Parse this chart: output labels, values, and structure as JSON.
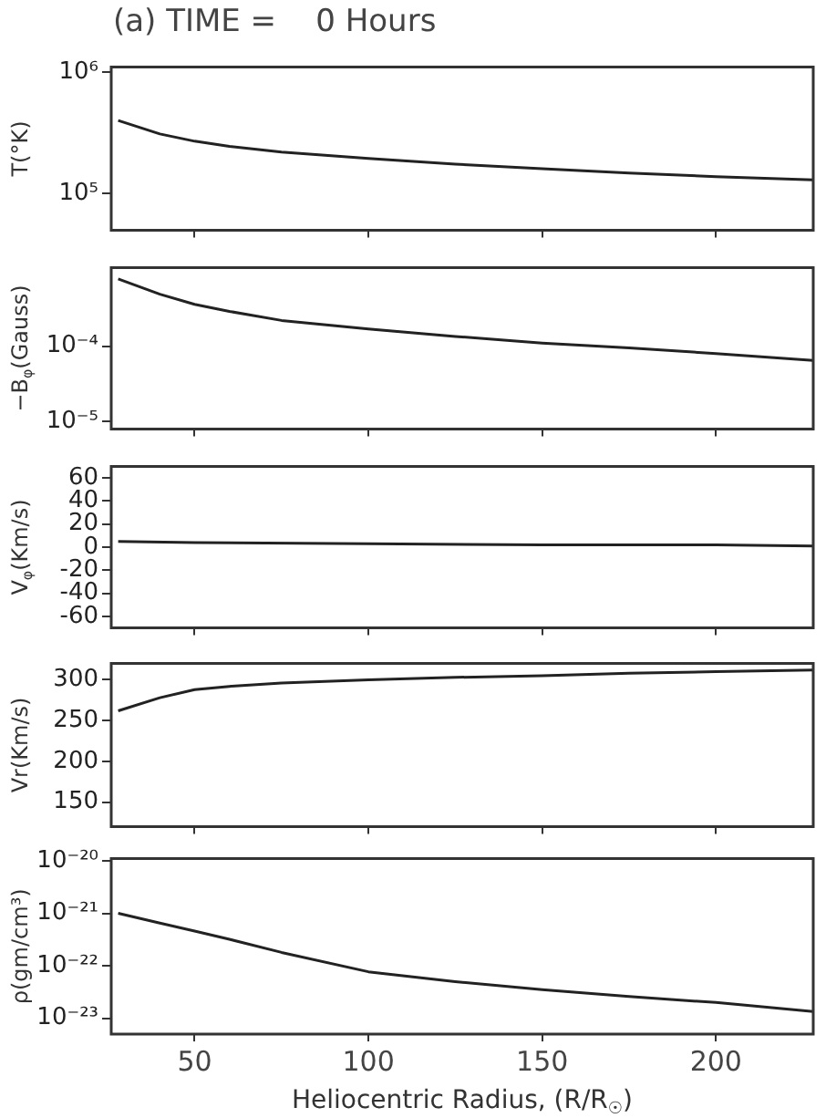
{
  "chart_data": [
    {
      "type": "line",
      "title": "(a) TIME =    0 Hours",
      "ylabel": "T(°K)",
      "log": "y",
      "tick_labels": "y",
      "x": [
        28,
        40,
        50,
        60,
        75,
        100,
        125,
        150,
        175,
        200,
        228
      ],
      "series": [
        {
          "color": "#222222",
          "values": [
            400000,
            310000,
            270000,
            245000,
            220000,
            195000,
            175000,
            160000,
            148000,
            138000,
            130000
          ]
        }
      ],
      "xlim": [
        26,
        228
      ],
      "xticks": [
        50,
        100,
        150,
        200
      ],
      "ylim": [
        50000,
        1100000
      ],
      "yticks": [
        {
          "value": 100000,
          "label": "10⁵"
        },
        {
          "value": 1000000,
          "label": "10⁶"
        }
      ]
    },
    {
      "type": "line",
      "ylabel": "−B$_{φ}$(Gauss)",
      "log": "y",
      "tick_labels": "y",
      "x": [
        28,
        40,
        50,
        60,
        75,
        100,
        125,
        150,
        175,
        200,
        228
      ],
      "series": [
        {
          "color": "#222222",
          "values": [
            0.00078,
            0.00049,
            0.00036,
            0.00029,
            0.00022,
            0.00017,
            0.000135,
            0.00011,
            9.5e-05,
            8e-05,
            6.5e-05
          ]
        }
      ],
      "xlim": [
        26,
        228
      ],
      "xticks": [
        50,
        100,
        150,
        200
      ],
      "ylim": [
        8e-06,
        0.0011
      ],
      "yticks": [
        {
          "value": 1e-05,
          "label": "10⁻⁵"
        },
        {
          "value": 0.0001,
          "label": "10⁻⁴"
        }
      ]
    },
    {
      "type": "line",
      "ylabel": "V$_{φ}$(Km/s)",
      "tick_labels": "y",
      "x": [
        28,
        50,
        100,
        150,
        200,
        228
      ],
      "series": [
        {
          "color": "#222222",
          "values": [
            5,
            4,
            3,
            2,
            2,
            1
          ]
        }
      ],
      "xlim": [
        26,
        228
      ],
      "xticks": [
        50,
        100,
        150,
        200
      ],
      "ylim": [
        -70,
        70
      ],
      "yticks": [
        -60,
        -40,
        -20,
        0,
        20,
        40,
        60
      ]
    },
    {
      "type": "line",
      "ylabel": "Vr(Km/s)",
      "tick_labels": "y",
      "x": [
        28,
        40,
        50,
        60,
        75,
        100,
        125,
        150,
        175,
        200,
        228
      ],
      "series": [
        {
          "color": "#222222",
          "values": [
            262,
            278,
            288,
            292,
            296,
            300,
            303,
            305,
            308,
            310,
            312
          ]
        }
      ],
      "xlim": [
        26,
        228
      ],
      "xticks": [
        50,
        100,
        150,
        200
      ],
      "ylim": [
        120,
        320
      ],
      "yticks": [
        150,
        200,
        250,
        300
      ]
    },
    {
      "type": "line",
      "ylabel": "ρ(gm/cm³)",
      "xlabel": "Heliocentric Radius, (R/R$_{☉}$)",
      "log": "y",
      "x": [
        28,
        40,
        50,
        60,
        75,
        100,
        125,
        150,
        175,
        200,
        228
      ],
      "series": [
        {
          "color": "#222222",
          "values": [
            1e-21,
            6.5e-22,
            4.6e-22,
            3.2e-22,
            1.8e-22,
            7.7e-23,
            5e-23,
            3.5e-23,
            2.6e-23,
            2e-23,
            1.35e-23
          ]
        }
      ],
      "xlim": [
        26,
        228
      ],
      "xticks": [
        50,
        100,
        150,
        200
      ],
      "ylim": [
        5e-24,
        1.1e-20
      ],
      "yticks": [
        {
          "value": 1e-23,
          "label": "10⁻²³"
        },
        {
          "value": 1e-22,
          "label": "10⁻²²"
        },
        {
          "value": 1e-21,
          "label": "10⁻²¹"
        },
        {
          "value": 1e-20,
          "label": "10⁻²⁰"
        }
      ]
    }
  ]
}
